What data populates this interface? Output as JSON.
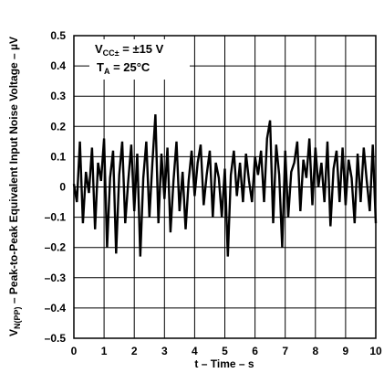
{
  "chart_data": {
    "type": "line",
    "title": "",
    "xlabel": "t – Time – s",
    "ylabel": "V",
    "ylabel_sub": "N(PP)",
    "ylabel_rest": " – Peak-to-Peak Equivalent Input Noise Voltage – µV",
    "xlim": [
      0,
      10
    ],
    "ylim": [
      -0.5,
      0.5
    ],
    "grid": true,
    "x_ticks": [
      "0",
      "1",
      "2",
      "3",
      "4",
      "5",
      "6",
      "7",
      "8",
      "9",
      "10"
    ],
    "y_ticks": [
      "0.5",
      "0.4",
      "0.3",
      "0.2",
      "0.1",
      "0",
      "–0.1",
      "–0.2",
      "–0.3",
      "–0.4",
      "–0.5"
    ],
    "annotations": {
      "vcc_main": "V",
      "vcc_sub": "CC±",
      "vcc_rest": " = ±15 V",
      "ta_main": "T",
      "ta_sub": "A",
      "ta_rest": " = 25°C"
    },
    "series": [
      {
        "x": [
          0.0,
          0.1,
          0.2,
          0.3,
          0.4,
          0.5,
          0.6,
          0.7,
          0.8,
          0.9,
          1.0,
          1.1,
          1.2,
          1.3,
          1.4,
          1.5,
          1.6,
          1.7,
          1.8,
          1.9,
          2.0,
          2.1,
          2.2,
          2.3,
          2.4,
          2.5,
          2.6,
          2.7,
          2.8,
          2.9,
          3.0,
          3.1,
          3.2,
          3.3,
          3.4,
          3.5,
          3.6,
          3.7,
          3.8,
          3.9,
          4.0,
          4.1,
          4.2,
          4.3,
          4.4,
          4.5,
          4.6,
          4.7,
          4.8,
          4.9,
          5.0,
          5.1,
          5.2,
          5.3,
          5.4,
          5.5,
          5.6,
          5.7,
          5.8,
          5.9,
          6.0,
          6.1,
          6.2,
          6.3,
          6.4,
          6.5,
          6.6,
          6.7,
          6.8,
          6.9,
          7.0,
          7.1,
          7.2,
          7.3,
          7.4,
          7.5,
          7.6,
          7.7,
          7.8,
          7.9,
          8.0,
          8.1,
          8.2,
          8.3,
          8.4,
          8.5,
          8.6,
          8.7,
          8.8,
          8.9,
          9.0,
          9.1,
          9.2,
          9.3,
          9.4,
          9.5,
          9.6,
          9.7,
          9.8,
          9.9,
          10.0
        ],
        "y": [
          0.01,
          -0.05,
          0.15,
          -0.12,
          0.05,
          -0.02,
          0.13,
          -0.14,
          0.08,
          0.02,
          0.16,
          -0.2,
          0.03,
          0.12,
          -0.22,
          0.04,
          0.15,
          -0.12,
          0.02,
          0.14,
          -0.08,
          0.11,
          -0.23,
          0.03,
          0.15,
          -0.1,
          0.08,
          0.24,
          -0.12,
          0.11,
          -0.04,
          0.13,
          -0.15,
          0.02,
          0.15,
          -0.08,
          0.05,
          -0.14,
          0.02,
          0.12,
          -0.03,
          0.08,
          0.14,
          -0.06,
          0.04,
          0.12,
          -0.1,
          0.08,
          0.03,
          -0.1,
          0.06,
          -0.23,
          0.04,
          0.12,
          -0.03,
          0.08,
          -0.05,
          0.11,
          0.02,
          -0.05,
          0.1,
          0.04,
          0.12,
          -0.05,
          0.16,
          0.22,
          -0.12,
          0.14,
          0.04,
          -0.2,
          0.12,
          -0.1,
          0.05,
          0.08,
          0.15,
          -0.08,
          0.09,
          0.03,
          0.16,
          -0.06,
          0.13,
          0.0,
          0.08,
          -0.05,
          0.15,
          -0.13,
          0.06,
          0.12,
          -0.05,
          0.13,
          -0.06,
          0.09,
          0.03,
          -0.12,
          0.11,
          -0.05,
          0.13,
          0.02,
          -0.08,
          0.14,
          -0.12
        ]
      }
    ]
  }
}
